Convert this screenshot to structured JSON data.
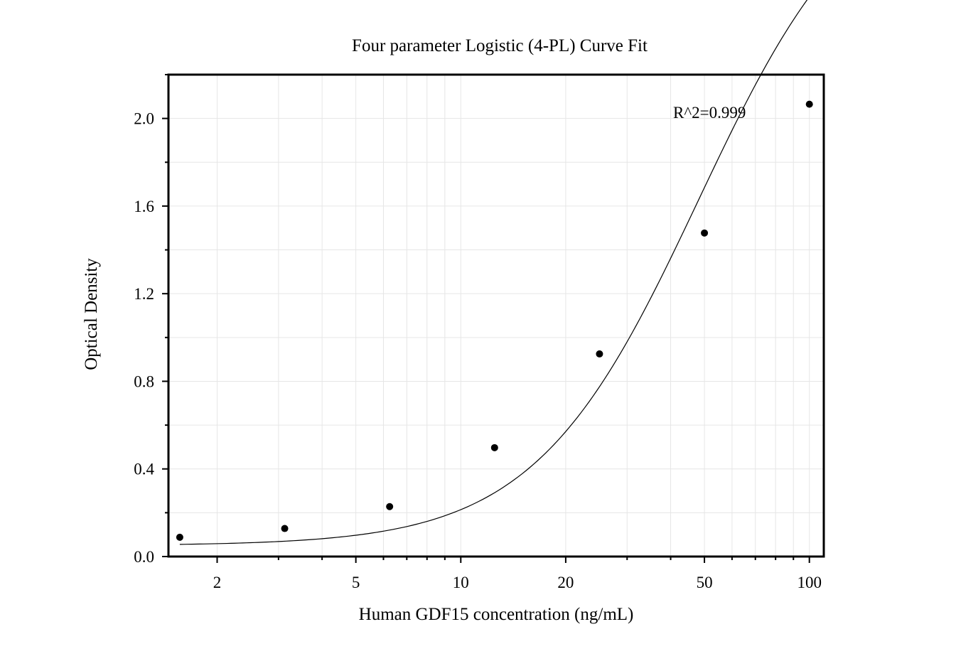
{
  "chart_data": {
    "type": "scatter",
    "title": "Four parameter Logistic (4-PL) Curve Fit",
    "xlabel": "Human GDF15 concentration (ng/mL)",
    "ylabel": "Optical Density",
    "xscale": "log",
    "xlim": [
      1.45,
      110
    ],
    "ylim": [
      0,
      2.2
    ],
    "xticks": [
      2,
      5,
      10,
      20,
      50,
      100
    ],
    "xtick_labels": [
      "2",
      "5",
      "10",
      "20",
      "50",
      "100"
    ],
    "yticks": [
      0.0,
      0.4,
      0.8,
      1.2,
      1.6,
      2.0
    ],
    "ytick_labels": [
      "0.0",
      "0.4",
      "0.8",
      "1.2",
      "1.6",
      "2.0"
    ],
    "grid": true,
    "annotation": "R^2=0.999",
    "series": [
      {
        "points": [
          {
            "x": 1.5625,
            "y": 0.088
          },
          {
            "x": 3.125,
            "y": 0.128
          },
          {
            "x": 6.25,
            "y": 0.228
          },
          {
            "x": 12.5,
            "y": 0.497
          },
          {
            "x": 25,
            "y": 0.925
          },
          {
            "x": 50,
            "y": 1.477
          },
          {
            "x": 100,
            "y": 2.065
          }
        ]
      }
    ],
    "fit": {
      "model": "4PL",
      "x_range": [
        1.5625,
        100
      ],
      "A": 0.05,
      "B": 1.85,
      "C": 48,
      "D": 3.2
    }
  }
}
